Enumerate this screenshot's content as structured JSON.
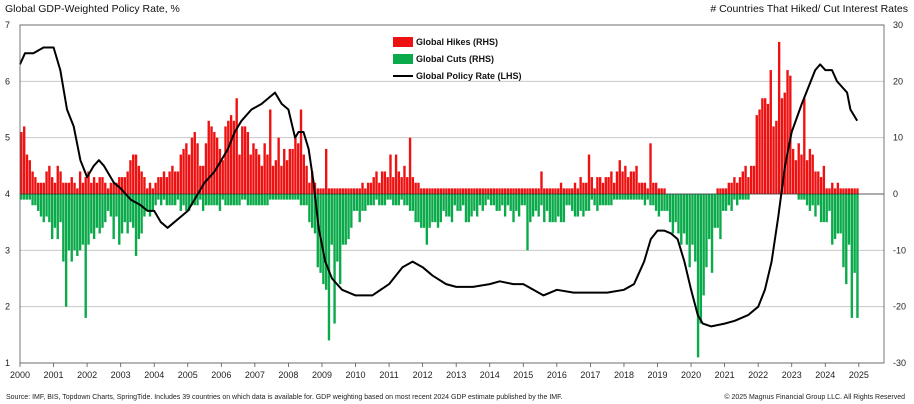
{
  "header": {
    "left_title": "Global GDP-Weighted Policy Rate, %",
    "right_title": "# Countries That Hiked/ Cut Interest Rates"
  },
  "footer": {
    "source": "Source: IMF, BIS, Topdown Charts, SpringTide. Includes 39 countries on which data is available for. GDP weighting based on most recent 2024 GDP estimate published by the IMF.",
    "copyright": "© 2025 Magnus Financial Group LLC. All Rights Reserved"
  },
  "colors": {
    "hikes": "#ee1111",
    "cuts": "#0aaa4a",
    "rate": "#000000",
    "grid": "#c8c8c8"
  },
  "chart_data": {
    "type": "bar+line",
    "x_range": [
      2000,
      2025.75
    ],
    "x_ticks": [
      "2000",
      "2001",
      "2002",
      "2003",
      "2004",
      "2005",
      "2006",
      "2007",
      "2008",
      "2009",
      "2010",
      "2011",
      "2012",
      "2013",
      "2014",
      "2015",
      "2016",
      "2017",
      "2018",
      "2019",
      "2020",
      "2021",
      "2022",
      "2023",
      "2024",
      "2025"
    ],
    "left_axis": {
      "label": "Global GDP-Weighted Policy Rate, %",
      "range": [
        1,
        7
      ],
      "ticks": [
        "1",
        "2",
        "3",
        "4",
        "5",
        "6",
        "7"
      ]
    },
    "right_axis": {
      "label": "# Countries That Hiked/ Cut Interest Rates",
      "range": [
        -30,
        30
      ],
      "ticks": [
        "-30",
        "-20",
        "-10",
        "0",
        "10",
        "20",
        "30"
      ]
    },
    "grid": "horizontal",
    "legend_position": "top-center",
    "series": [
      {
        "name": "Global Hikes (RHS)",
        "kind": "bar",
        "axis": "right",
        "anchors": [
          [
            2000,
            8
          ],
          [
            2000.5,
            3
          ],
          [
            2001,
            4
          ],
          [
            2001.5,
            2
          ],
          [
            2002,
            3
          ],
          [
            2002.5,
            2
          ],
          [
            2003,
            3
          ],
          [
            2003.3,
            6
          ],
          [
            2003.7,
            2
          ],
          [
            2004,
            2
          ],
          [
            2004.4,
            3
          ],
          [
            2004.8,
            6
          ],
          [
            2005,
            7
          ],
          [
            2005.5,
            8
          ],
          [
            2006,
            9
          ],
          [
            2006.5,
            11
          ],
          [
            2007,
            9
          ],
          [
            2007.5,
            8
          ],
          [
            2008,
            8
          ],
          [
            2008.3,
            9
          ],
          [
            2008.6,
            4
          ],
          [
            2008.9,
            1
          ],
          [
            2009.5,
            1
          ],
          [
            2010,
            1
          ],
          [
            2010.5,
            2
          ],
          [
            2011,
            5
          ],
          [
            2011.3,
            6
          ],
          [
            2011.6,
            3
          ],
          [
            2012,
            1
          ],
          [
            2012.5,
            1
          ],
          [
            2013,
            1
          ],
          [
            2014,
            1
          ],
          [
            2015,
            1
          ],
          [
            2015.5,
            1
          ],
          [
            2016,
            1
          ],
          [
            2016.5,
            2
          ],
          [
            2017,
            2
          ],
          [
            2017.5,
            3
          ],
          [
            2018,
            4
          ],
          [
            2018.5,
            3
          ],
          [
            2019,
            1
          ],
          [
            2019.5,
            0
          ],
          [
            2020,
            0
          ],
          [
            2020.5,
            0
          ],
          [
            2021,
            1
          ],
          [
            2021.5,
            4
          ],
          [
            2021.9,
            8
          ],
          [
            2022.2,
            17
          ],
          [
            2022.5,
            20
          ],
          [
            2022.8,
            17
          ],
          [
            2023,
            11
          ],
          [
            2023.3,
            8
          ],
          [
            2023.6,
            5
          ],
          [
            2024,
            2
          ],
          [
            2024.5,
            1
          ],
          [
            2024.9,
            1
          ]
        ],
        "spikes": [
          [
            2000.1,
            12
          ],
          [
            2005.6,
            13
          ],
          [
            2006.2,
            13
          ],
          [
            2006.45,
            17
          ],
          [
            2007.45,
            15
          ],
          [
            2008.3,
            15
          ],
          [
            2009.05,
            8
          ],
          [
            2011.6,
            10
          ],
          [
            2015.5,
            4
          ],
          [
            2016.95,
            7
          ],
          [
            2017.8,
            6
          ],
          [
            2018.75,
            9
          ],
          [
            2021.95,
            14
          ],
          [
            2022.35,
            22
          ],
          [
            2022.55,
            27
          ],
          [
            2022.9,
            21
          ],
          [
            2023.35,
            17
          ],
          [
            2023.95,
            5
          ]
        ]
      },
      {
        "name": "Global Cuts (RHS)",
        "kind": "bar",
        "axis": "right",
        "anchors": [
          [
            2000,
            1
          ],
          [
            2000.5,
            2
          ],
          [
            2001,
            6
          ],
          [
            2001.3,
            10
          ],
          [
            2001.6,
            8
          ],
          [
            2002,
            7
          ],
          [
            2002.5,
            4
          ],
          [
            2003,
            7
          ],
          [
            2003.5,
            6
          ],
          [
            2004,
            2
          ],
          [
            2004.5,
            2
          ],
          [
            2005,
            2
          ],
          [
            2005.5,
            2
          ],
          [
            2006,
            2
          ],
          [
            2006.5,
            2
          ],
          [
            2007,
            2
          ],
          [
            2007.5,
            1
          ],
          [
            2008,
            1
          ],
          [
            2008.5,
            2
          ],
          [
            2008.8,
            8
          ],
          [
            2009,
            15
          ],
          [
            2009.2,
            17
          ],
          [
            2009.5,
            12
          ],
          [
            2009.8,
            6
          ],
          [
            2010,
            4
          ],
          [
            2010.5,
            2
          ],
          [
            2011,
            1
          ],
          [
            2011.5,
            2
          ],
          [
            2011.8,
            4
          ],
          [
            2012,
            5
          ],
          [
            2012.5,
            4
          ],
          [
            2013,
            4
          ],
          [
            2013.5,
            3
          ],
          [
            2014,
            2
          ],
          [
            2014.5,
            3
          ],
          [
            2015,
            4
          ],
          [
            2015.5,
            3
          ],
          [
            2016,
            4
          ],
          [
            2016.5,
            3
          ],
          [
            2017,
            2
          ],
          [
            2017.5,
            2
          ],
          [
            2018,
            1
          ],
          [
            2018.5,
            1
          ],
          [
            2019,
            3
          ],
          [
            2019.5,
            6
          ],
          [
            2019.8,
            8
          ],
          [
            2020.15,
            17
          ],
          [
            2020.4,
            14
          ],
          [
            2020.7,
            8
          ],
          [
            2021,
            3
          ],
          [
            2021.5,
            1
          ],
          [
            2022,
            0
          ],
          [
            2022.5,
            0
          ],
          [
            2023,
            0
          ],
          [
            2023.5,
            2
          ],
          [
            2024,
            5
          ],
          [
            2024.4,
            8
          ],
          [
            2024.7,
            14
          ],
          [
            2024.9,
            19
          ]
        ],
        "spikes": [
          [
            2001.35,
            20
          ],
          [
            2001.95,
            22
          ],
          [
            2003.4,
            11
          ],
          [
            2009.15,
            26
          ],
          [
            2009.35,
            23
          ],
          [
            2012.1,
            9
          ],
          [
            2015.1,
            10
          ],
          [
            2019.9,
            11
          ],
          [
            2020.15,
            29
          ],
          [
            2020.35,
            18
          ],
          [
            2024.75,
            20
          ],
          [
            2024.95,
            20
          ]
        ]
      },
      {
        "name": "Global Policy Rate (LHS)",
        "kind": "line",
        "axis": "left",
        "points": [
          [
            2000,
            6.3
          ],
          [
            2000.15,
            6.5
          ],
          [
            2000.4,
            6.5
          ],
          [
            2000.7,
            6.6
          ],
          [
            2001,
            6.6
          ],
          [
            2001.2,
            6.2
          ],
          [
            2001.4,
            5.5
          ],
          [
            2001.6,
            5.2
          ],
          [
            2001.8,
            4.6
          ],
          [
            2002,
            4.3
          ],
          [
            2002.2,
            4.5
          ],
          [
            2002.35,
            4.6
          ],
          [
            2002.5,
            4.5
          ],
          [
            2002.8,
            4.2
          ],
          [
            2003,
            4.1
          ],
          [
            2003.3,
            3.9
          ],
          [
            2003.6,
            3.8
          ],
          [
            2003.8,
            3.7
          ],
          [
            2004,
            3.7
          ],
          [
            2004.2,
            3.5
          ],
          [
            2004.4,
            3.4
          ],
          [
            2004.6,
            3.5
          ],
          [
            2004.8,
            3.6
          ],
          [
            2005,
            3.7
          ],
          [
            2005.2,
            3.9
          ],
          [
            2005.5,
            4.2
          ],
          [
            2005.8,
            4.4
          ],
          [
            2006,
            4.6
          ],
          [
            2006.2,
            4.8
          ],
          [
            2006.4,
            5.1
          ],
          [
            2006.6,
            5.3
          ],
          [
            2006.9,
            5.5
          ],
          [
            2007.2,
            5.6
          ],
          [
            2007.4,
            5.7
          ],
          [
            2007.6,
            5.8
          ],
          [
            2007.8,
            5.6
          ],
          [
            2008,
            5.5
          ],
          [
            2008.2,
            5.0
          ],
          [
            2008.3,
            5.1
          ],
          [
            2008.45,
            5.1
          ],
          [
            2008.6,
            4.8
          ],
          [
            2008.75,
            4.2
          ],
          [
            2008.9,
            3.4
          ],
          [
            2009.1,
            2.8
          ],
          [
            2009.3,
            2.5
          ],
          [
            2009.6,
            2.3
          ],
          [
            2010,
            2.2
          ],
          [
            2010.5,
            2.2
          ],
          [
            2011,
            2.4
          ],
          [
            2011.4,
            2.7
          ],
          [
            2011.7,
            2.8
          ],
          [
            2012,
            2.7
          ],
          [
            2012.3,
            2.55
          ],
          [
            2012.7,
            2.4
          ],
          [
            2013,
            2.35
          ],
          [
            2013.5,
            2.35
          ],
          [
            2014,
            2.4
          ],
          [
            2014.3,
            2.45
          ],
          [
            2014.7,
            2.4
          ],
          [
            2015,
            2.4
          ],
          [
            2015.3,
            2.3
          ],
          [
            2015.6,
            2.2
          ],
          [
            2016,
            2.3
          ],
          [
            2016.5,
            2.25
          ],
          [
            2017,
            2.25
          ],
          [
            2017.5,
            2.25
          ],
          [
            2018,
            2.3
          ],
          [
            2018.3,
            2.4
          ],
          [
            2018.6,
            2.8
          ],
          [
            2018.8,
            3.2
          ],
          [
            2019,
            3.35
          ],
          [
            2019.2,
            3.35
          ],
          [
            2019.4,
            3.3
          ],
          [
            2019.6,
            3.2
          ],
          [
            2019.8,
            2.8
          ],
          [
            2020,
            2.3
          ],
          [
            2020.2,
            1.85
          ],
          [
            2020.35,
            1.7
          ],
          [
            2020.6,
            1.65
          ],
          [
            2021,
            1.7
          ],
          [
            2021.3,
            1.75
          ],
          [
            2021.7,
            1.85
          ],
          [
            2022,
            2.0
          ],
          [
            2022.2,
            2.3
          ],
          [
            2022.4,
            2.8
          ],
          [
            2022.6,
            3.6
          ],
          [
            2022.8,
            4.5
          ],
          [
            2023,
            5.1
          ],
          [
            2023.3,
            5.6
          ],
          [
            2023.5,
            5.9
          ],
          [
            2023.7,
            6.2
          ],
          [
            2023.85,
            6.3
          ],
          [
            2024,
            6.2
          ],
          [
            2024.2,
            6.2
          ],
          [
            2024.35,
            6.0
          ],
          [
            2024.5,
            5.9
          ],
          [
            2024.65,
            5.8
          ],
          [
            2024.75,
            5.5
          ],
          [
            2024.85,
            5.4
          ],
          [
            2024.95,
            5.3
          ]
        ]
      }
    ]
  }
}
